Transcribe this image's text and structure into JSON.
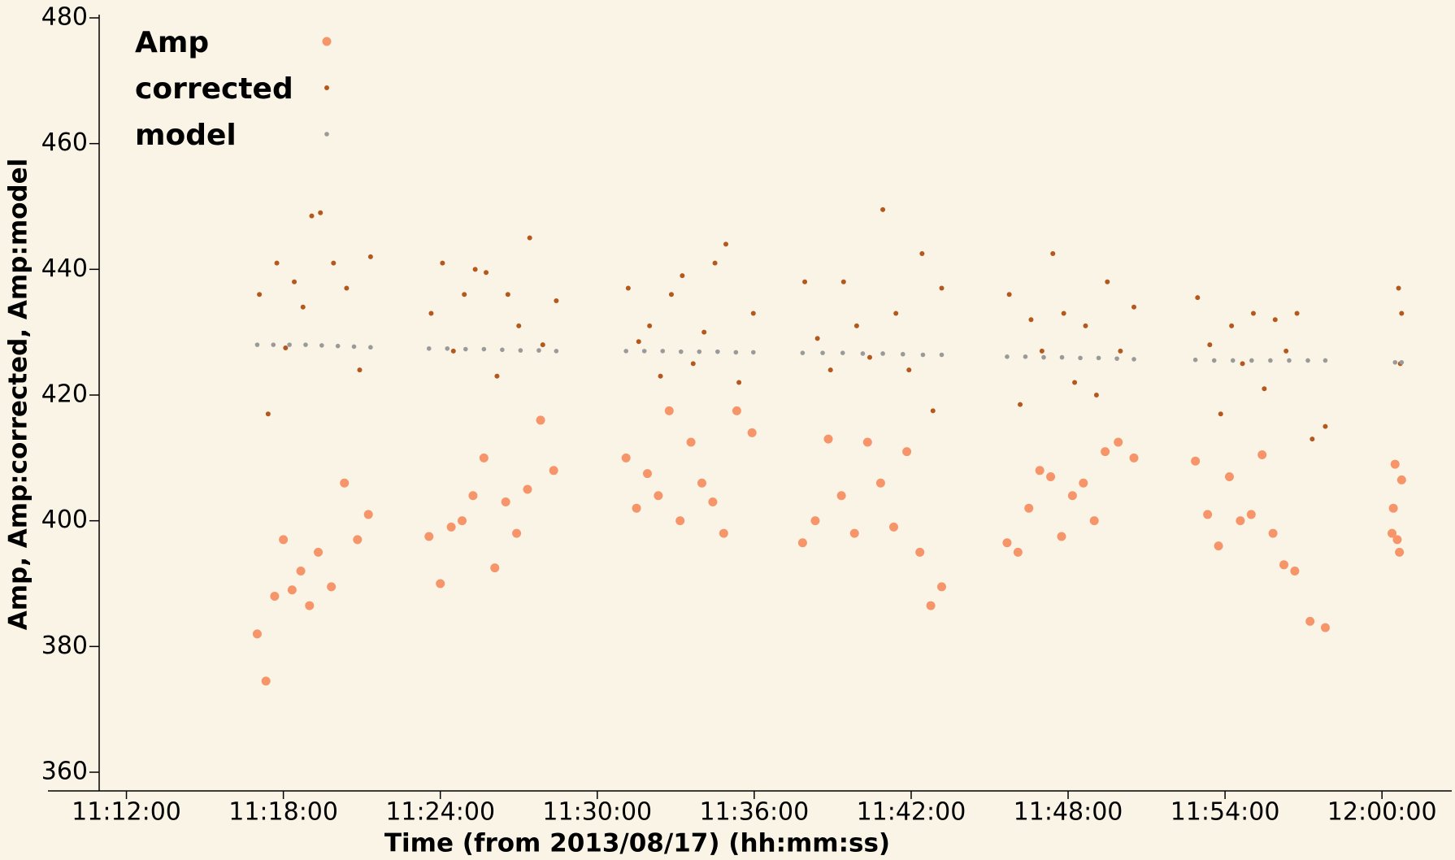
{
  "chart_data": {
    "type": "scatter",
    "x_label": "Time (from 2013/08/17) (hh:mm:ss)",
    "y_label": "Amp, Amp:corrected, Amp:model",
    "xlim": [
      40140,
      43360
    ],
    "ylim": [
      360,
      480
    ],
    "xticks": [
      {
        "value": 40320,
        "label": "11:12:00"
      },
      {
        "value": 40680,
        "label": "11:18:00"
      },
      {
        "value": 41040,
        "label": "11:24:00"
      },
      {
        "value": 41400,
        "label": "11:30:00"
      },
      {
        "value": 41760,
        "label": "11:36:00"
      },
      {
        "value": 42120,
        "label": "11:42:00"
      },
      {
        "value": 42480,
        "label": "11:48:00"
      },
      {
        "value": 42840,
        "label": "11:54:00"
      },
      {
        "value": 43200,
        "label": "12:00:00"
      }
    ],
    "yticks": [
      360,
      380,
      400,
      420,
      440,
      460,
      480
    ],
    "legend": "top-left",
    "series": [
      {
        "name": "Amp",
        "color": "#f7956a",
        "x": [
          40620,
          40640,
          40660,
          40680,
          40700,
          40720,
          40740,
          40760,
          40790,
          40820,
          40850,
          40875,
          41014,
          41040,
          41065,
          41090,
          41115,
          41140,
          41165,
          41190,
          41215,
          41240,
          41270,
          41300,
          41466,
          41490,
          41515,
          41540,
          41565,
          41590,
          41615,
          41640,
          41665,
          41690,
          41720,
          41755,
          41871,
          41900,
          41930,
          41960,
          41990,
          42020,
          42050,
          42080,
          42110,
          42140,
          42165,
          42190,
          42340,
          42365,
          42390,
          42415,
          42440,
          42465,
          42490,
          42515,
          42540,
          42565,
          42595,
          42631,
          42772,
          42800,
          42825,
          42850,
          42875,
          42900,
          42925,
          42950,
          42975,
          43000,
          43035,
          43070,
          43223,
          43226,
          43230,
          43235,
          43240,
          43245
        ],
        "values": [
          382,
          374.5,
          388,
          397,
          389,
          392,
          386.5,
          395,
          389.5,
          406,
          397,
          401,
          397.5,
          390,
          399,
          400,
          404,
          410,
          392.5,
          403,
          398,
          405,
          416,
          408,
          410,
          402,
          407.5,
          404,
          417.5,
          400,
          412.5,
          406,
          403,
          398,
          417.5,
          414,
          396.5,
          400,
          413,
          404,
          398,
          412.5,
          406,
          399,
          411,
          395,
          386.5,
          389.5,
          396.5,
          395,
          402,
          408,
          407,
          397.5,
          404,
          406,
          400,
          411,
          412.5,
          410,
          409.5,
          401,
          396,
          407,
          400,
          401,
          410.5,
          398,
          393,
          392,
          384,
          383,
          398,
          402,
          409,
          397,
          395,
          406.5
        ]
      },
      {
        "name": "corrected",
        "color": "#b5581d",
        "x": [
          40625,
          40645,
          40665,
          40685,
          40705,
          40725,
          40745,
          40765,
          40795,
          40825,
          40855,
          40880,
          41019,
          41045,
          41070,
          41095,
          41120,
          41145,
          41170,
          41195,
          41220,
          41245,
          41275,
          41306,
          41471,
          41495,
          41520,
          41545,
          41570,
          41595,
          41620,
          41645,
          41670,
          41695,
          41725,
          41758,
          41876,
          41905,
          41935,
          41965,
          41995,
          42025,
          42055,
          42085,
          42115,
          42145,
          42170,
          42190,
          42345,
          42370,
          42395,
          42420,
          42445,
          42470,
          42495,
          42520,
          42545,
          42570,
          42600,
          42631,
          42777,
          42805,
          42830,
          42855,
          42880,
          42905,
          42930,
          42955,
          42980,
          43005,
          43040,
          43070,
          43238,
          43242,
          43245
        ],
        "values": [
          436,
          417,
          441,
          427.5,
          438,
          434,
          448.5,
          449,
          441,
          437,
          424,
          442,
          433,
          441,
          427,
          436,
          440,
          439.5,
          423,
          436,
          431,
          445,
          428,
          435,
          437,
          428.5,
          431,
          423,
          436,
          439,
          425,
          430,
          441,
          444,
          422,
          433,
          438,
          429,
          424,
          438,
          431,
          426,
          449.5,
          433,
          424,
          442.5,
          417.5,
          437,
          436,
          418.5,
          432,
          427,
          442.5,
          433,
          422,
          431,
          420,
          438,
          427,
          434,
          435.5,
          428,
          417,
          431,
          425,
          433,
          421,
          432,
          427,
          433,
          413,
          415,
          437,
          425,
          433
        ]
      },
      {
        "name": "model",
        "color": "#9a9a9a",
        "x": [
          40620,
          40657,
          40694,
          40731,
          40768,
          40805,
          40842,
          40880,
          41014,
          41056,
          41098,
          41140,
          41182,
          41224,
          41266,
          41306,
          41466,
          41508,
          41550,
          41592,
          41634,
          41676,
          41718,
          41758,
          41871,
          41917,
          41963,
          42009,
          42055,
          42101,
          42147,
          42190,
          42340,
          42382,
          42424,
          42466,
          42508,
          42550,
          42592,
          42631,
          42772,
          42815,
          42858,
          42901,
          42944,
          42987,
          43030,
          43070,
          43230,
          43245
        ],
        "values": [
          428,
          428,
          428,
          428,
          427.9,
          427.8,
          427.7,
          427.6,
          427.4,
          427.4,
          427.3,
          427.3,
          427.2,
          427.1,
          427.1,
          427.0,
          427,
          427,
          427,
          426.9,
          426.9,
          426.9,
          426.8,
          426.8,
          426.7,
          426.7,
          426.7,
          426.6,
          426.6,
          426.5,
          426.4,
          426.4,
          426.1,
          426.1,
          426,
          426,
          425.9,
          425.9,
          425.8,
          425.7,
          425.6,
          425.5,
          425.5,
          425.5,
          425.5,
          425.5,
          425.5,
          425.5,
          425.2,
          425.2
        ]
      }
    ]
  }
}
